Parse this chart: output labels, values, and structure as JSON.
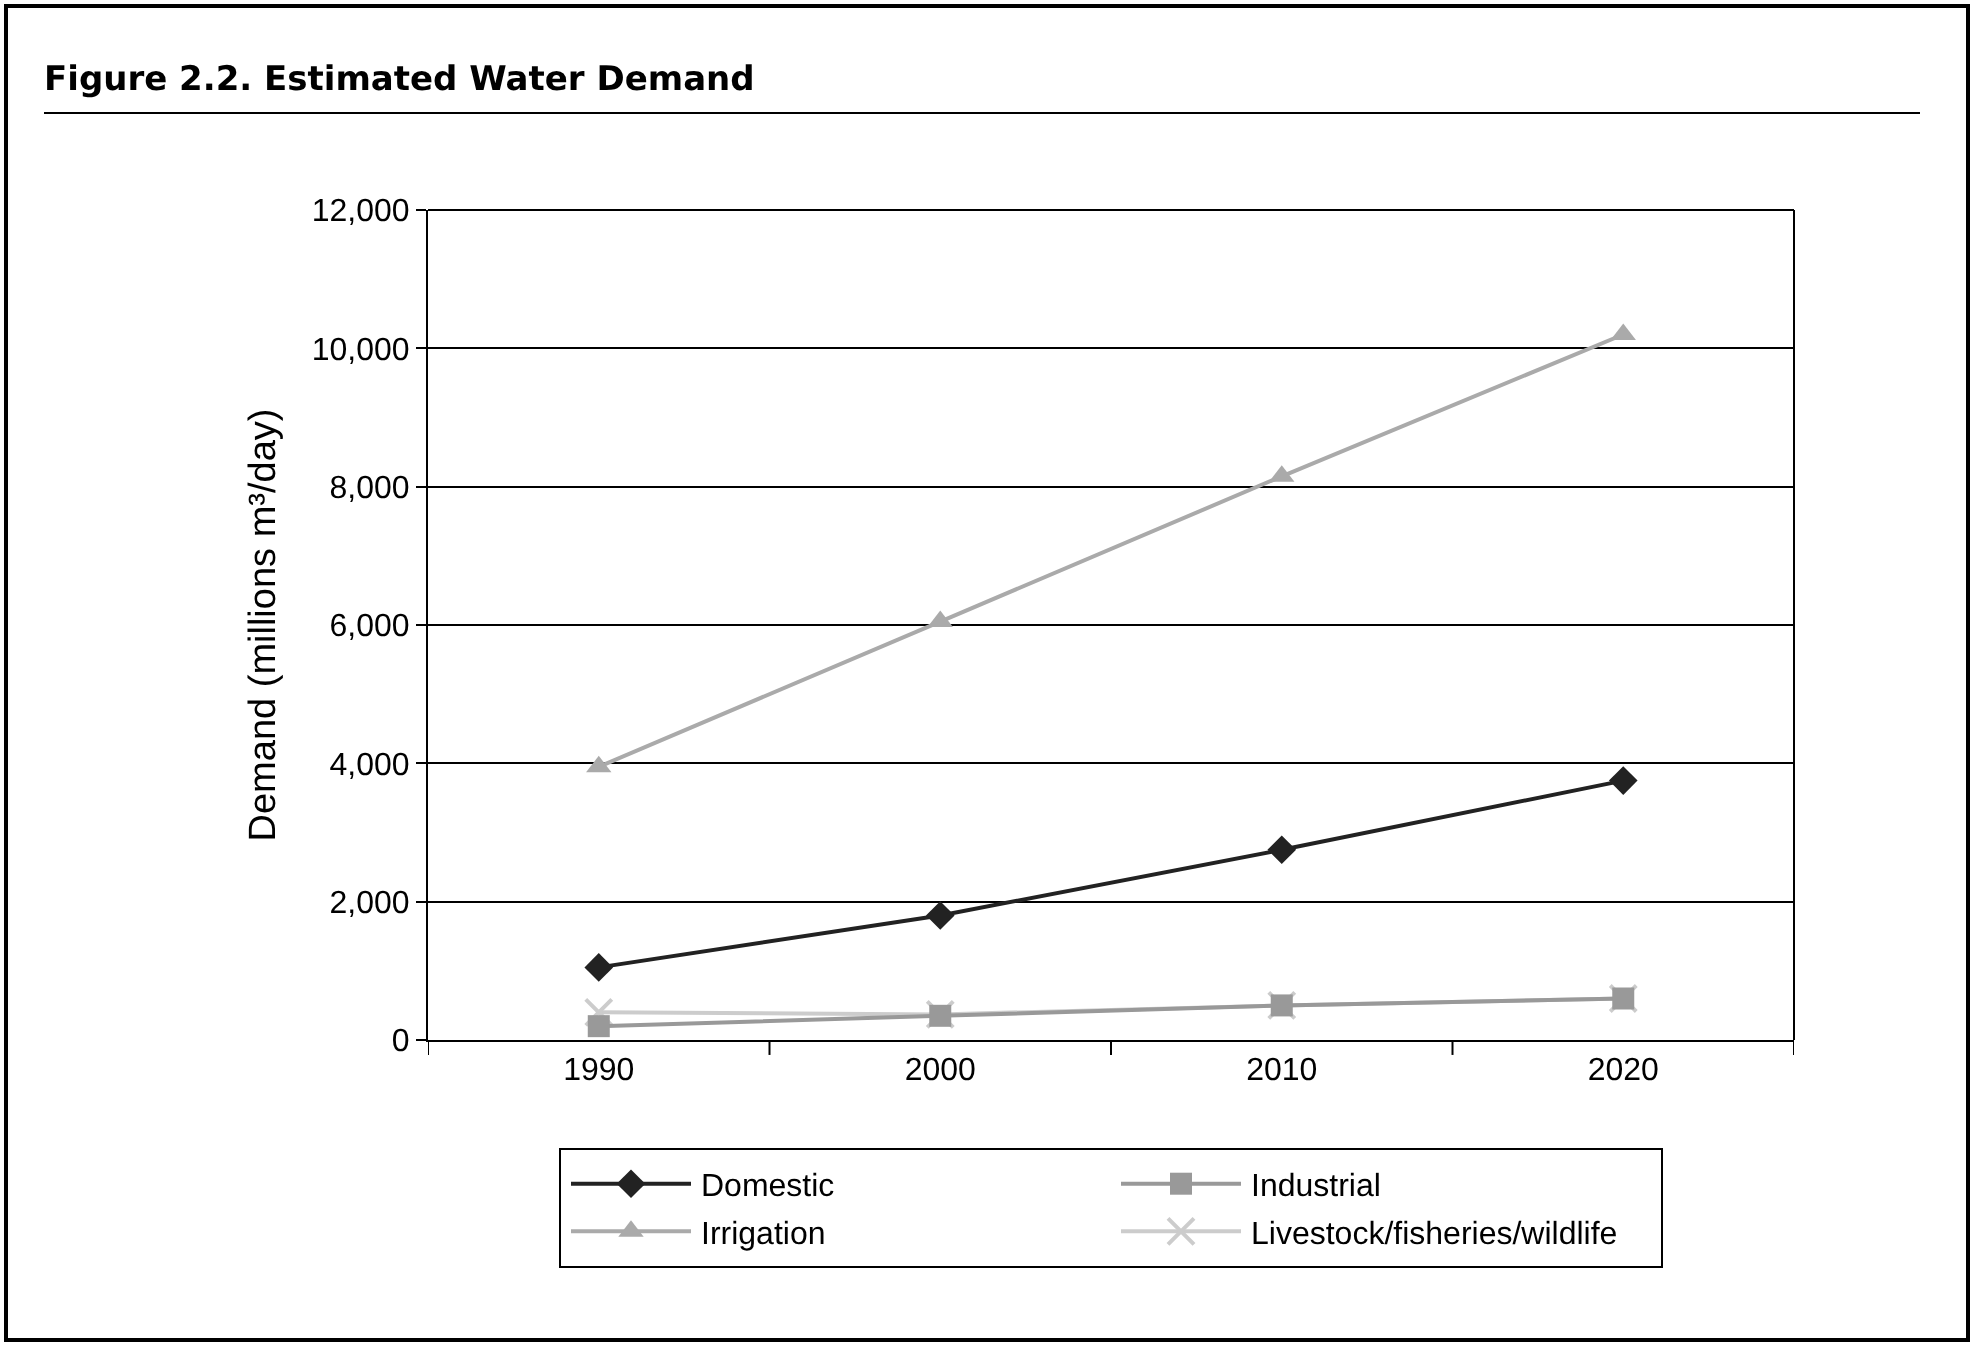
{
  "chart_data": {
    "type": "line",
    "title": "Figure 2.2.  Estimated Water Demand",
    "ylabel": "Demand (millions m³/day)",
    "categories": [
      "1990",
      "2000",
      "2010",
      "2020"
    ],
    "series": [
      {
        "name": "Domestic",
        "color": "#222222",
        "marker": "diamond",
        "values": [
          1050,
          1800,
          2750,
          3750
        ]
      },
      {
        "name": "Industrial",
        "color": "#999999",
        "marker": "square",
        "values": [
          200,
          350,
          500,
          600
        ]
      },
      {
        "name": "Irrigation",
        "color": "#aaaaaa",
        "marker": "triangle",
        "values": [
          3950,
          6050,
          8150,
          10200
        ]
      },
      {
        "name": "Livestock/fisheries/wildlife",
        "color": "#cccccc",
        "marker": "cross",
        "values": [
          400,
          370,
          500,
          600
        ]
      }
    ],
    "ylim": [
      0,
      12000
    ],
    "yticks": [
      {
        "value": 0,
        "label": "0"
      },
      {
        "value": 2000,
        "label": "2,000"
      },
      {
        "value": 4000,
        "label": "4,000"
      },
      {
        "value": 6000,
        "label": "6,000"
      },
      {
        "value": 8000,
        "label": "8,000"
      },
      {
        "value": 10000,
        "label": "10,000"
      },
      {
        "value": 12000,
        "label": "12,000"
      }
    ],
    "grid": "y",
    "legend": "bottom"
  }
}
